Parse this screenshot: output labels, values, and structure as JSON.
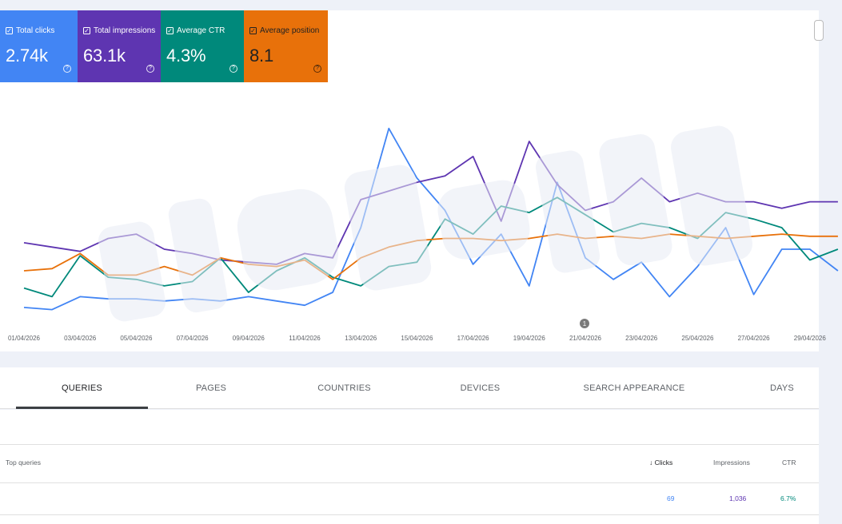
{
  "metrics": {
    "clicks": {
      "label": "Total clicks",
      "value": "2.74k",
      "color": "#4285f4"
    },
    "impressions": {
      "label": "Total impressions",
      "value": "63.1k",
      "color": "#5e35b1"
    },
    "ctr": {
      "label": "Average CTR",
      "value": "4.3%",
      "color": "#00897b"
    },
    "position": {
      "label": "Average position",
      "value": "8.1",
      "color": "#e8710a"
    },
    "help_glyph": "?",
    "check_glyph": "✓"
  },
  "chart_data": {
    "type": "line",
    "x_tick_labels": [
      "01/04/2026",
      "03/04/2026",
      "05/04/2026",
      "07/04/2026",
      "09/04/2026",
      "11/04/2026",
      "13/04/2026",
      "15/04/2026",
      "17/04/2026",
      "19/04/2026",
      "21/04/2026",
      "23/04/2026",
      "25/04/2026",
      "27/04/2026",
      "29/04/2026"
    ],
    "annotation_label": "1",
    "y_unit_note": "values as relative level 0-100 (no y-axis printed)",
    "series": [
      {
        "name": "Total clicks",
        "color": "#4285f4",
        "values": [
          3,
          2,
          8,
          7,
          7,
          6,
          7,
          6,
          8,
          6,
          4,
          10,
          40,
          86,
          63,
          48,
          23,
          37,
          13,
          61,
          26,
          16,
          24,
          8,
          22,
          40,
          9,
          30,
          30,
          20
        ]
      },
      {
        "name": "Total impressions",
        "color": "#5e35b1",
        "values": [
          33,
          31,
          29,
          35,
          37,
          30,
          28,
          25,
          24,
          23,
          28,
          26,
          53,
          57,
          61,
          64,
          73,
          43,
          80,
          60,
          48,
          52,
          63,
          52,
          56,
          52,
          52,
          49,
          52,
          52
        ]
      },
      {
        "name": "Average CTR",
        "color": "#00897b",
        "values": [
          12,
          8,
          27,
          17,
          16,
          13,
          15,
          26,
          10,
          20,
          26,
          17,
          13,
          22,
          24,
          44,
          37,
          50,
          47,
          54,
          46,
          38,
          42,
          40,
          35,
          47,
          44,
          40,
          25,
          30
        ]
      },
      {
        "name": "Average position",
        "color": "#e8710a",
        "values": [
          20,
          21,
          28,
          18,
          18,
          22,
          18,
          26,
          23,
          22,
          25,
          16,
          26,
          31,
          34,
          35,
          35,
          34,
          35,
          37,
          35,
          36,
          35,
          37,
          36,
          35,
          36,
          37,
          36,
          36
        ]
      }
    ]
  },
  "tabs": [
    {
      "label": "QUERIES"
    },
    {
      "label": "PAGES"
    },
    {
      "label": "COUNTRIES"
    },
    {
      "label": "DEVICES"
    },
    {
      "label": "SEARCH APPEARANCE"
    },
    {
      "label": "DAYS"
    }
  ],
  "table": {
    "headers": {
      "query": "Top queries",
      "clicks": "Clicks",
      "impressions": "Impressions",
      "ctr": "CTR",
      "sort_glyph": "↓"
    },
    "rows": [
      {
        "query": "",
        "clicks": "69",
        "impressions": "1,036",
        "ctr": "6.7%"
      }
    ]
  }
}
